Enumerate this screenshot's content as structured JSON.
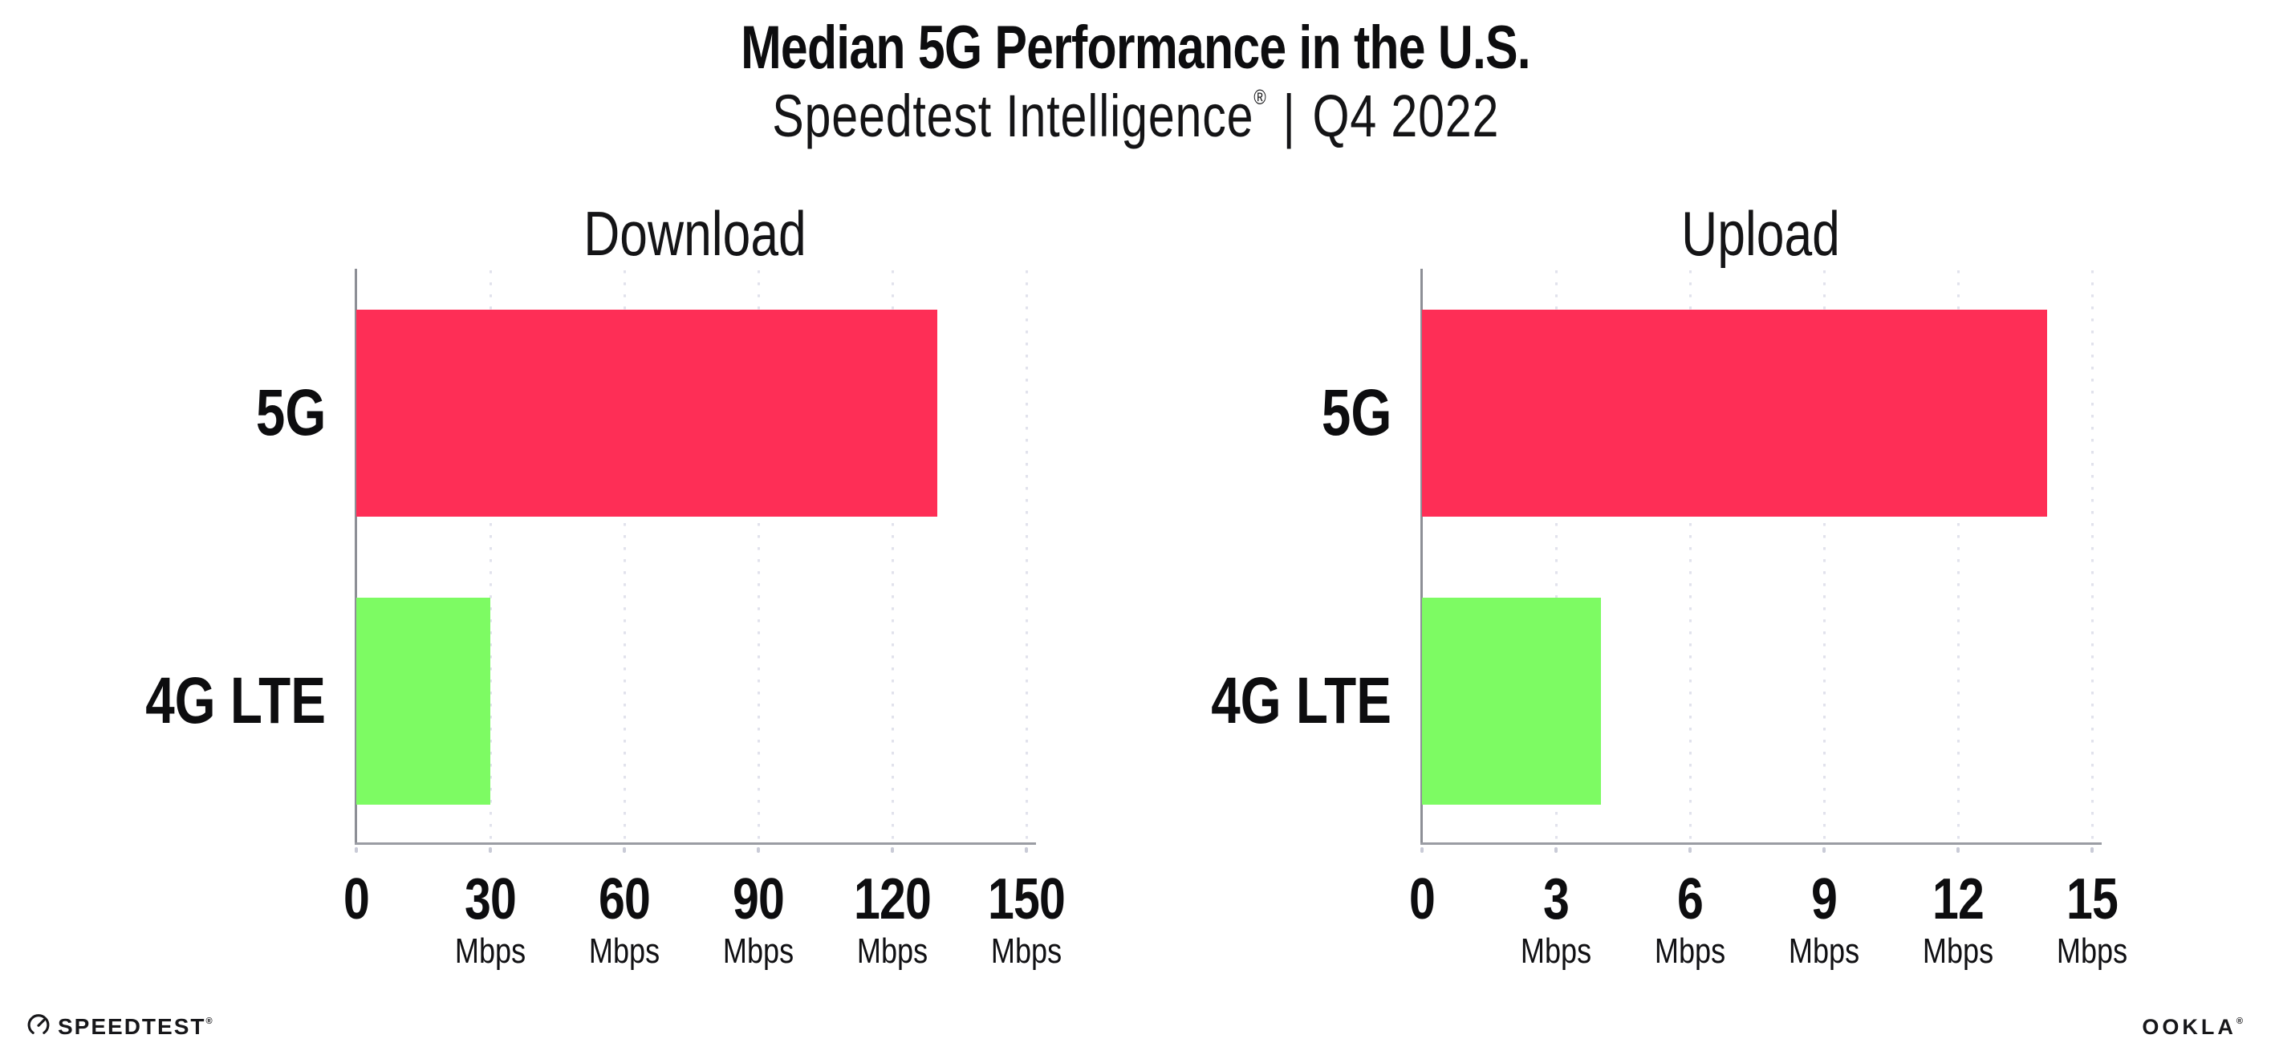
{
  "header": {
    "title": "Median 5G Performance in the U.S.",
    "subtitle_brand": "Speedtest Intelligence",
    "subtitle_reg": "®",
    "subtitle_divider": "|",
    "subtitle_period": "Q4 2022"
  },
  "chart_data": [
    {
      "type": "bar",
      "orientation": "horizontal",
      "title": "Download",
      "categories": [
        "5G",
        "4G LTE"
      ],
      "values": [
        130,
        30
      ],
      "unit": "Mbps",
      "xticks": [
        0,
        30,
        60,
        90,
        120,
        150
      ],
      "xlim": [
        0,
        153
      ],
      "tick_unit_label": "Mbps",
      "bar_colors": [
        "#FE2E56",
        "#7DFB63"
      ],
      "grid": "dotted-vertical-light",
      "legend": "none"
    },
    {
      "type": "bar",
      "orientation": "horizontal",
      "title": "Upload",
      "categories": [
        "5G",
        "4G LTE"
      ],
      "values": [
        14,
        4
      ],
      "unit": "Mbps",
      "xticks": [
        0,
        3,
        6,
        9,
        12,
        15
      ],
      "xlim": [
        0,
        15.3
      ],
      "tick_unit_label": "Mbps",
      "bar_colors": [
        "#FE2E56",
        "#7DFB63"
      ],
      "grid": "dotted-vertical-light",
      "legend": "none"
    }
  ],
  "footer": {
    "speedtest_label": "SPEEDTEST",
    "speedtest_reg": "®",
    "ookla_label": "OOKLA",
    "ookla_reg": "®"
  },
  "colors": {
    "bar_5g": "#FE2E56",
    "bar_4g_lte": "#7DFB63",
    "axis_spine": "#9a9ca3",
    "gridline": "#e1e2ec",
    "tick_mark": "#c9cbd7",
    "text": "#0d0d0f",
    "background": "#ffffff"
  }
}
